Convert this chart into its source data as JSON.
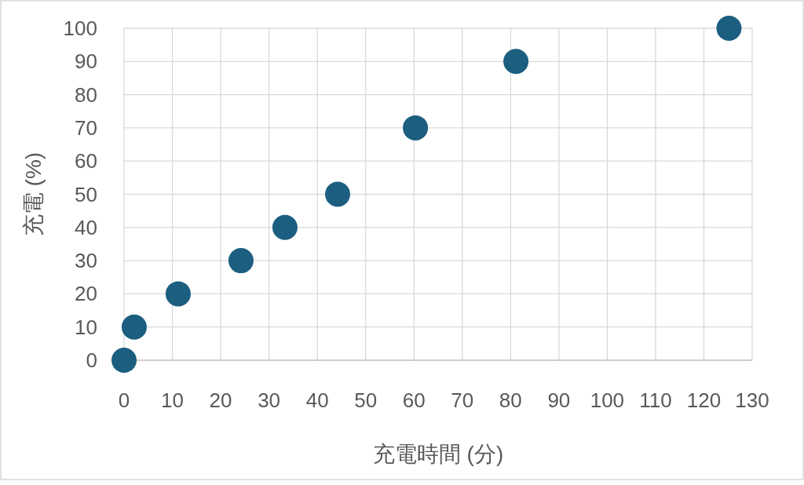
{
  "chart_data": {
    "type": "scatter",
    "xlabel": "充電時間 (分)",
    "ylabel": "充電 (%)",
    "x": [
      0,
      2.1,
      11.2,
      24.2,
      33.3,
      44.2,
      60.3,
      81.1,
      125.2
    ],
    "values": [
      0,
      10,
      20,
      30,
      40,
      50,
      70,
      90,
      100
    ],
    "color": "#1b5e80",
    "marker": "circle",
    "grid": true,
    "xlim": [
      0,
      130
    ],
    "xticks": [
      0,
      10,
      20,
      30,
      40,
      50,
      60,
      70,
      80,
      90,
      100,
      110,
      120,
      130
    ],
    "ylim": [
      0,
      100
    ],
    "yticks": [
      0,
      10,
      20,
      30,
      40,
      50,
      60,
      70,
      80,
      90,
      100
    ]
  }
}
